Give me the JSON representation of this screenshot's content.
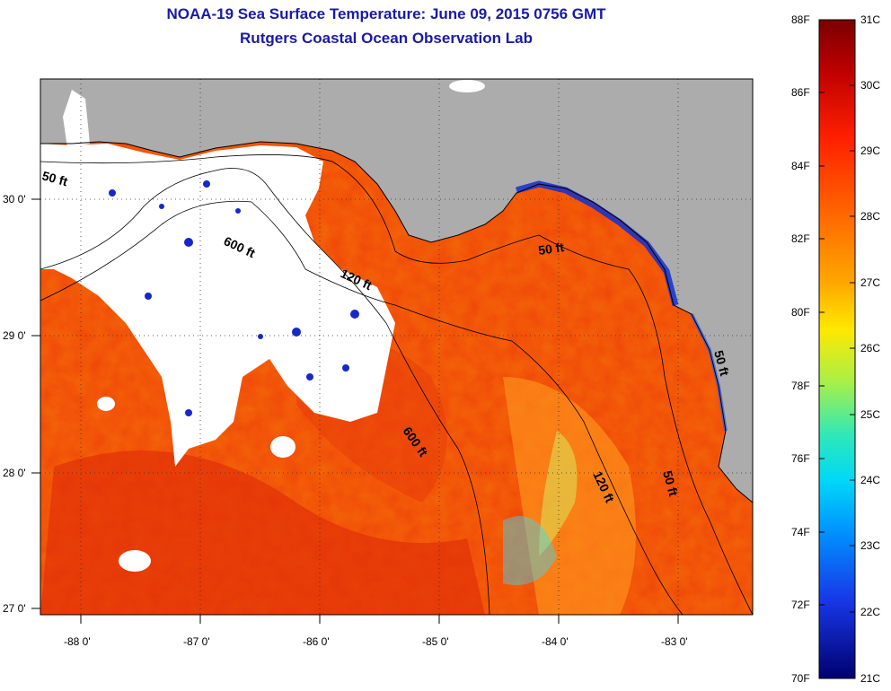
{
  "title": "NOAA-19 Sea Surface Temperature:  June 09, 2015 0756 GMT",
  "subtitle": "Rutgers Coastal Ocean Observation Lab",
  "map": {
    "lon_labels": [
      "-88 0'",
      "-87 0'",
      "-86 0'",
      "-85 0'",
      "-84 0'",
      "-83 0'"
    ],
    "lat_labels": [
      "30 0'",
      "29 0'",
      "28 0'",
      "27 0'"
    ],
    "contour_labels": [
      "50 ft",
      "600 ft",
      "120 ft",
      "50 ft",
      "600 ft",
      "120 ft",
      "50 ft",
      "50 ft"
    ]
  },
  "colorbar": {
    "fahrenheit_labels": [
      "88F",
      "86F",
      "84F",
      "82F",
      "80F",
      "78F",
      "76F",
      "74F",
      "72F",
      "70F"
    ],
    "celsius_labels": [
      "31C",
      "30C",
      "29C",
      "28C",
      "27C",
      "26C",
      "25C",
      "24C",
      "23C",
      "22C",
      "21C"
    ],
    "colors": [
      "#7a0000",
      "#cc0000",
      "#ff2a00",
      "#ff6400",
      "#ffa000",
      "#ffe000",
      "#a0f050",
      "#30e8c0",
      "#00c8ff",
      "#0080ff",
      "#1030e0",
      "#000080"
    ]
  }
}
